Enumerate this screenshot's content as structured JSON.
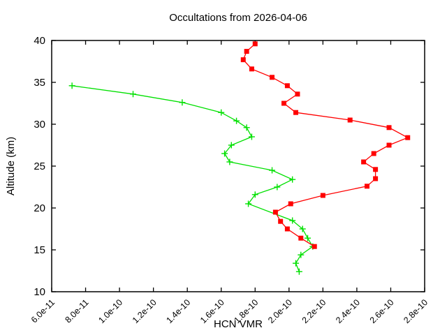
{
  "chart_data": {
    "type": "line",
    "title": "Occultations from 2026-04-06",
    "xlabel": "HCN VMR",
    "ylabel": "Altitude (km)",
    "xlim": [
      6e-11,
      2.8e-10
    ],
    "ylim": [
      10,
      40
    ],
    "grid": false,
    "legend_position": "none",
    "background_color": "#ffffff",
    "axis_color": "#000000",
    "x_ticks": {
      "values": [
        6e-11,
        8e-11,
        1e-10,
        1.2e-10,
        1.4e-10,
        1.6e-10,
        1.8e-10,
        2e-10,
        2.2e-10,
        2.4e-10,
        2.6e-10,
        2.8e-10
      ],
      "labels": [
        "6.0e-11",
        "8.0e-11",
        "1.0e-10",
        "1.2e-10",
        "1.4e-10",
        "1.6e-10",
        "1.8e-10",
        "2.0e-10",
        "2.2e-10",
        "2.4e-10",
        "2.6e-10",
        "2.8e-10"
      ]
    },
    "y_ticks": {
      "values": [
        10,
        15,
        20,
        25,
        30,
        35,
        40
      ],
      "labels": [
        "10",
        "15",
        "20",
        "25",
        "30",
        "35",
        "40"
      ]
    },
    "series": [
      {
        "name": "occultation-green",
        "color": "#00e000",
        "marker": "plus",
        "points_vmr_alt": [
          [
            7.2e-11,
            34.6
          ],
          [
            1.08e-10,
            33.6
          ],
          [
            1.37e-10,
            32.6
          ],
          [
            1.6e-10,
            31.4
          ],
          [
            1.69e-10,
            30.4
          ],
          [
            1.75e-10,
            29.6
          ],
          [
            1.78e-10,
            28.5
          ],
          [
            1.66e-10,
            27.5
          ],
          [
            1.62e-10,
            26.5
          ],
          [
            1.65e-10,
            25.5
          ],
          [
            1.9e-10,
            24.5
          ],
          [
            2.02e-10,
            23.4
          ],
          [
            1.93e-10,
            22.5
          ],
          [
            1.8e-10,
            21.6
          ],
          [
            1.76e-10,
            20.5
          ],
          [
            2.02e-10,
            18.5
          ],
          [
            2.08e-10,
            17.5
          ],
          [
            2.11e-10,
            16.4
          ],
          [
            2.14e-10,
            15.4
          ],
          [
            2.07e-10,
            14.4
          ],
          [
            2.04e-10,
            13.4
          ],
          [
            2.06e-10,
            12.4
          ]
        ]
      },
      {
        "name": "occultation-red",
        "color": "#ff0000",
        "marker": "square",
        "points_vmr_alt": [
          [
            1.8e-10,
            39.6
          ],
          [
            1.75e-10,
            38.7
          ],
          [
            1.73e-10,
            37.7
          ],
          [
            1.78e-10,
            36.6
          ],
          [
            1.9e-10,
            35.6
          ],
          [
            1.99e-10,
            34.6
          ],
          [
            2.05e-10,
            33.6
          ],
          [
            1.97e-10,
            32.5
          ],
          [
            2.04e-10,
            31.4
          ],
          [
            2.36e-10,
            30.5
          ],
          [
            2.59e-10,
            29.6
          ],
          [
            2.7e-10,
            28.4
          ],
          [
            2.59e-10,
            27.5
          ],
          [
            2.5e-10,
            26.5
          ],
          [
            2.44e-10,
            25.5
          ],
          [
            2.51e-10,
            24.6
          ],
          [
            2.51e-10,
            23.5
          ],
          [
            2.46e-10,
            22.6
          ],
          [
            2.2e-10,
            21.5
          ],
          [
            2.01e-10,
            20.5
          ],
          [
            1.92e-10,
            19.5
          ],
          [
            1.95e-10,
            18.4
          ],
          [
            1.99e-10,
            17.5
          ],
          [
            2.07e-10,
            16.4
          ],
          [
            2.15e-10,
            15.4
          ]
        ]
      }
    ]
  }
}
